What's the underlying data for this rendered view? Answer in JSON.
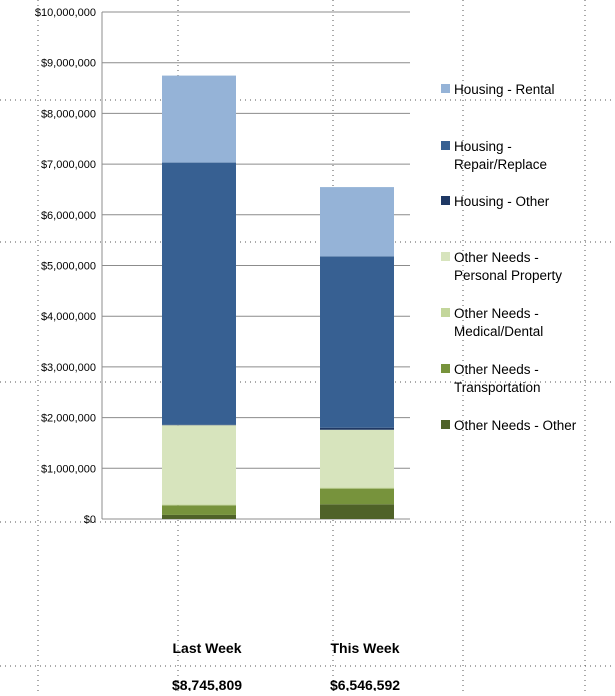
{
  "chart_data": {
    "type": "bar",
    "stacked": true,
    "categories": [
      "Last Week",
      "This Week"
    ],
    "totals": [
      "$8,745,809",
      "$6,546,592"
    ],
    "ylim": [
      0,
      10000000
    ],
    "yticks": [
      "$0",
      "$1,000,000",
      "$2,000,000",
      "$3,000,000",
      "$4,000,000",
      "$5,000,000",
      "$6,000,000",
      "$7,000,000",
      "$8,000,000",
      "$9,000,000",
      "$10,000,000"
    ],
    "grid": true,
    "legend_position": "right",
    "series": [
      {
        "name": "Other Needs -  Other",
        "color": "#4f6228",
        "values": [
          80000,
          290000
        ]
      },
      {
        "name": "Other Needs - Transportation",
        "color": "#77933c",
        "values": [
          190000,
          310000
        ]
      },
      {
        "name": "Other Needs - Medical/Dental",
        "color": "#c3d69b",
        "values": [
          20000,
          20000
        ]
      },
      {
        "name": "Other Needs - Personal Property",
        "color": "#d7e4bd",
        "values": [
          1560000,
          1140000
        ]
      },
      {
        "name": "Housing - Other",
        "color": "#1f3864",
        "values": [
          10000,
          40000
        ]
      },
      {
        "name": "Housing - Repair/Replace",
        "color": "#376092",
        "values": [
          5170000,
          3380000
        ]
      },
      {
        "name": "Housing - Rental",
        "color": "#95b3d7",
        "values": [
          1715809,
          1366592
        ]
      }
    ],
    "legend": [
      {
        "lines": [
          "Housing - Rental"
        ],
        "color": "#95b3d7"
      },
      {
        "lines": [
          "Housing -",
          "Repair/Replace"
        ],
        "color": "#376092"
      },
      {
        "lines": [
          "Housing - Other"
        ],
        "color": "#1f3864"
      },
      {
        "lines": [
          "Other Needs -",
          "Personal Property"
        ],
        "color": "#d7e4bd"
      },
      {
        "lines": [
          "Other Needs -",
          "Medical/Dental"
        ],
        "color": "#c3d69b"
      },
      {
        "lines": [
          "Other Needs -",
          "Transportation"
        ],
        "color": "#77933c"
      },
      {
        "lines": [
          "Other Needs -  Other"
        ],
        "color": "#4f6228"
      }
    ]
  }
}
